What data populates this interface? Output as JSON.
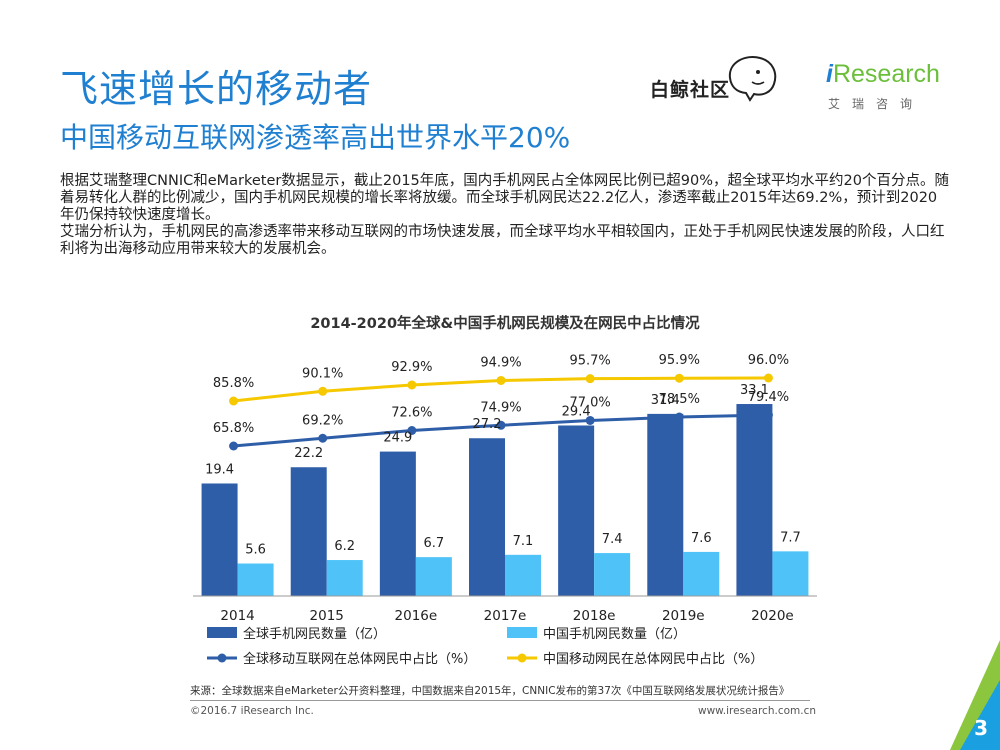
{
  "header": {
    "title": "飞速增长的移动者",
    "subtitle": "中国移动互联网渗透率高出世界水平20%"
  },
  "body": {
    "paragraph1": "根据艾瑞整理CNNIC和eMarketer数据显示，截止2015年底，国内手机网民占全体网民比例已超90%，超全球平均水平约20个百分点。随着易转化人群的比例减少，国内手机网民规模的增长率将放缓。而全球手机网民达22.2亿人，渗透率截止2015年达69.2%，预计到2020年仍保持较快速度增长。",
    "paragraph2": "艾瑞分析认为，手机网民的高渗透率带来移动互联网的市场快速发展，而全球平均水平相较国内，正处于手机网民快速发展的阶段，人口红利将为出海移动应用带来较大的发展机会。"
  },
  "logos": {
    "baijing_text": "白鲸社区",
    "iresearch_i": "i",
    "iresearch_rest": "Research",
    "iresearch_cn": "艾瑞咨询"
  },
  "chart_data": {
    "type": "bar",
    "title": "2014-2020年全球&中国手机网民规模及在网民中占比情况",
    "categories": [
      "2014",
      "2015",
      "2016e",
      "2017e",
      "2018e",
      "2019e",
      "2020e"
    ],
    "series": [
      {
        "name": "全球手机网民数量（亿）",
        "kind": "bar",
        "color": "#2f5ea8",
        "values": [
          19.4,
          22.2,
          24.9,
          27.2,
          29.4,
          31.4,
          33.1
        ],
        "labels": [
          "19.4",
          "22.2",
          "24.9",
          "27.2",
          "29.4",
          "31.4",
          "33.1"
        ]
      },
      {
        "name": "中国手机网民数量（亿）",
        "kind": "bar",
        "color": "#4fc3f7",
        "values": [
          5.6,
          6.2,
          6.7,
          7.1,
          7.4,
          7.6,
          7.7
        ],
        "labels": [
          "5.6",
          "6.2",
          "6.7",
          "7.1",
          "7.4",
          "7.6",
          "7.7"
        ]
      },
      {
        "name": "全球移动互联网在总体网民中占比（%）",
        "kind": "line",
        "color": "#2f5ea8",
        "values": [
          65.8,
          69.2,
          72.6,
          74.9,
          77.0,
          78.5,
          79.4
        ],
        "labels": [
          "65.8%",
          "69.2%",
          "72.6%",
          "74.9%",
          "77.0%",
          "78.5%",
          "79.4%"
        ]
      },
      {
        "name": "中国移动网民在总体网民中占比（%）",
        "kind": "line",
        "color": "#f5c800",
        "values": [
          85.8,
          90.1,
          92.9,
          94.9,
          95.7,
          95.9,
          96.0
        ],
        "labels": [
          "85.8%",
          "90.1%",
          "92.9%",
          "94.9%",
          "95.7%",
          "95.9%",
          "96.0%"
        ]
      }
    ],
    "bar_ylim": [
      0,
      40
    ],
    "line_ylim": [
      0,
      100
    ],
    "legend_position": "bottom"
  },
  "footer": {
    "source": "来源：全球数据来自eMarketer公开资料整理，中国数据来自2015年，CNNIC发布的第37次《中国互联网络发展状况统计报告》",
    "copyright": "©2016.7 iResearch Inc.",
    "url": "www.iresearch.com.cn",
    "page_number": "3"
  }
}
